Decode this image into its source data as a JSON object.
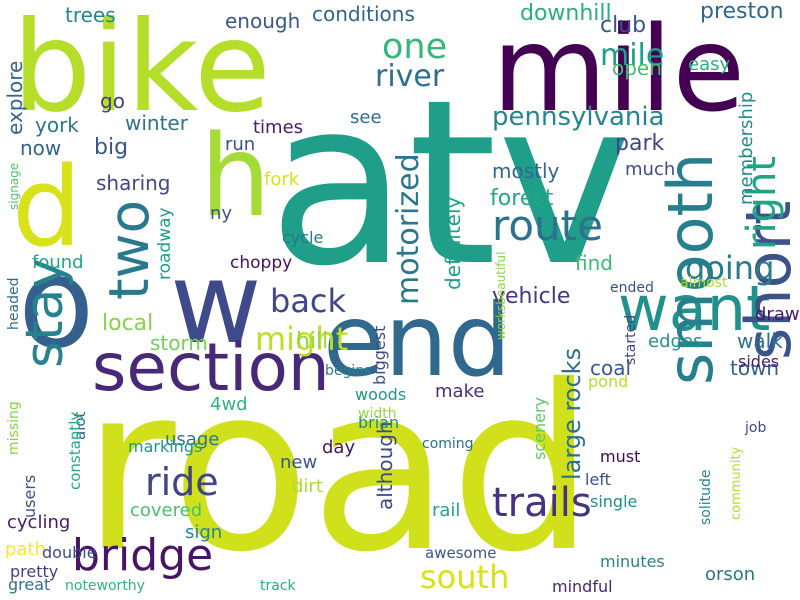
{
  "words": [
    {
      "text": "atv",
      "color": "#1f9e89"
    },
    {
      "text": "road",
      "color": "#d0e11c"
    },
    {
      "text": "bike",
      "color": "#b5de2b"
    },
    {
      "text": "mile",
      "color": "#440154"
    },
    {
      "text": "end",
      "color": "#31688e"
    },
    {
      "text": "w",
      "color": "#3e4a89"
    },
    {
      "text": "o",
      "color": "#355f8d"
    },
    {
      "text": "d",
      "color": "#d8e219"
    },
    {
      "text": "h",
      "color": "#a5db36"
    },
    {
      "text": "section",
      "color": "#482878"
    },
    {
      "text": "want",
      "color": "#21918c"
    },
    {
      "text": "smooth",
      "color": "#277f8e"
    },
    {
      "text": "short",
      "color": "#3b528b"
    },
    {
      "text": "stay",
      "color": "#26828e"
    },
    {
      "text": "two",
      "color": "#2a788e"
    },
    {
      "text": "bridge",
      "color": "#481467"
    },
    {
      "text": "route",
      "color": "#2c728e"
    },
    {
      "text": "trails",
      "color": "#46327e"
    },
    {
      "text": "right",
      "color": "#20a486"
    },
    {
      "text": "motorized",
      "color": "#2a768e"
    },
    {
      "text": "river",
      "color": "#2d708e"
    },
    {
      "text": "one",
      "color": "#35b779"
    },
    {
      "text": "going",
      "color": "#287c8e"
    },
    {
      "text": "back",
      "color": "#3f4788"
    },
    {
      "text": "might",
      "color": "#bddf26"
    },
    {
      "text": "ride",
      "color": "#414487"
    },
    {
      "text": "south",
      "color": "#d8e219"
    },
    {
      "text": "pennsylvania",
      "color": "#25858e"
    },
    {
      "text": "mile",
      "color": "#1f9e89"
    },
    {
      "text": "preston",
      "color": "#30678d"
    },
    {
      "text": "club",
      "color": "#3b528b"
    },
    {
      "text": "downhill",
      "color": "#29af7f"
    },
    {
      "text": "conditions",
      "color": "#33638d"
    },
    {
      "text": "enough",
      "color": "#38588c"
    },
    {
      "text": "vehicle",
      "color": "#453781"
    },
    {
      "text": "forest",
      "color": "#22a884"
    },
    {
      "text": "mostly",
      "color": "#31688e"
    },
    {
      "text": "definitely",
      "color": "#1fa188"
    },
    {
      "text": "large rocks",
      "color": "#2d708e"
    },
    {
      "text": "park",
      "color": "#404688"
    },
    {
      "text": "although",
      "color": "#3e4989"
    },
    {
      "text": "find",
      "color": "#3aba76"
    },
    {
      "text": "local",
      "color": "#84d44b"
    },
    {
      "text": "hill",
      "color": "#97d83f"
    },
    {
      "text": "storm",
      "color": "#73d056"
    },
    {
      "text": "sharing",
      "color": "#3e4989"
    },
    {
      "text": "winter",
      "color": "#2c738e"
    },
    {
      "text": "big",
      "color": "#38588c"
    },
    {
      "text": "now",
      "color": "#32648e"
    },
    {
      "text": "york",
      "color": "#2a778e"
    },
    {
      "text": "go",
      "color": "#433e85"
    },
    {
      "text": "explore",
      "color": "#32648e"
    },
    {
      "text": "trees",
      "color": "#24868e"
    },
    {
      "text": "open",
      "color": "#42be71"
    },
    {
      "text": "easy",
      "color": "#29af7f"
    },
    {
      "text": "membership",
      "color": "#228c8d"
    },
    {
      "text": "walk",
      "color": "#2c728e"
    },
    {
      "text": "town",
      "color": "#365d8d"
    },
    {
      "text": "coal",
      "color": "#38598c"
    },
    {
      "text": "edges",
      "color": "#21918c"
    },
    {
      "text": "draw",
      "color": "#48186a"
    },
    {
      "text": "much",
      "color": "#3e4c8a"
    },
    {
      "text": "roadway",
      "color": "#1e9b8a"
    },
    {
      "text": "fork",
      "color": "#d8e219"
    },
    {
      "text": "ny",
      "color": "#3b528b"
    },
    {
      "text": "run",
      "color": "#3c508b"
    },
    {
      "text": "times",
      "color": "#481b6d"
    },
    {
      "text": "see",
      "color": "#2f6c8e"
    },
    {
      "text": "found",
      "color": "#20a386"
    },
    {
      "text": "cycle",
      "color": "#2a768e"
    },
    {
      "text": "choppy",
      "color": "#470e61"
    },
    {
      "text": "4wd",
      "color": "#31b57b"
    },
    {
      "text": "usage",
      "color": "#2a788e"
    },
    {
      "text": "new",
      "color": "#3a548c"
    },
    {
      "text": "dirt",
      "color": "#addc30"
    },
    {
      "text": "covered",
      "color": "#48c16e"
    },
    {
      "text": "sign",
      "color": "#25858e"
    },
    {
      "text": "cycling",
      "color": "#481a6c"
    },
    {
      "text": "path",
      "color": "#fde725"
    },
    {
      "text": "pretty",
      "color": "#424186"
    },
    {
      "text": "great",
      "color": "#2c728e"
    },
    {
      "text": "noteworthy",
      "color": "#31b57b"
    },
    {
      "text": "track",
      "color": "#26ad81"
    },
    {
      "text": "rail",
      "color": "#20a386"
    },
    {
      "text": "awesome",
      "color": "#3b528b"
    },
    {
      "text": "coming",
      "color": "#2e6e8e"
    },
    {
      "text": "day",
      "color": "#471365"
    },
    {
      "text": "brian",
      "color": "#23898e"
    },
    {
      "text": "woods",
      "color": "#1f968b"
    },
    {
      "text": "make",
      "color": "#46307e"
    },
    {
      "text": "pond",
      "color": "#bade28"
    },
    {
      "text": "left",
      "color": "#3a548c"
    },
    {
      "text": "must",
      "color": "#450559"
    },
    {
      "text": "single",
      "color": "#228d8d"
    },
    {
      "text": "minutes",
      "color": "#26828e"
    },
    {
      "text": "mindful",
      "color": "#482677"
    },
    {
      "text": "orson",
      "color": "#2c738e"
    },
    {
      "text": "sides",
      "color": "#482173"
    },
    {
      "text": "job",
      "color": "#3f4788"
    },
    {
      "text": "ended",
      "color": "#3c4f8a"
    },
    {
      "text": "almost",
      "color": "#b0dd2f"
    },
    {
      "text": "started",
      "color": "#404588"
    },
    {
      "text": "scenery",
      "color": "#5ec962"
    },
    {
      "text": "solitude",
      "color": "#24878e"
    },
    {
      "text": "community",
      "color": "#b5de2b"
    },
    {
      "text": "begins",
      "color": "#287d8e"
    },
    {
      "text": "biggest",
      "color": "#3d4e8a"
    },
    {
      "text": "width",
      "color": "#95d840"
    },
    {
      "text": "markings",
      "color": "#1f998a"
    },
    {
      "text": "alot",
      "color": "#34618d"
    },
    {
      "text": "constantly",
      "color": "#24aa83"
    },
    {
      "text": "users",
      "color": "#3b528b"
    },
    {
      "text": "double",
      "color": "#3e4c8a"
    },
    {
      "text": "missing",
      "color": "#84d44b"
    },
    {
      "text": "headed",
      "color": "#2f6b8e"
    },
    {
      "text": "signage",
      "color": "#54c568"
    },
    {
      "text": "worksbeautiful",
      "color": "#8bd646"
    }
  ]
}
